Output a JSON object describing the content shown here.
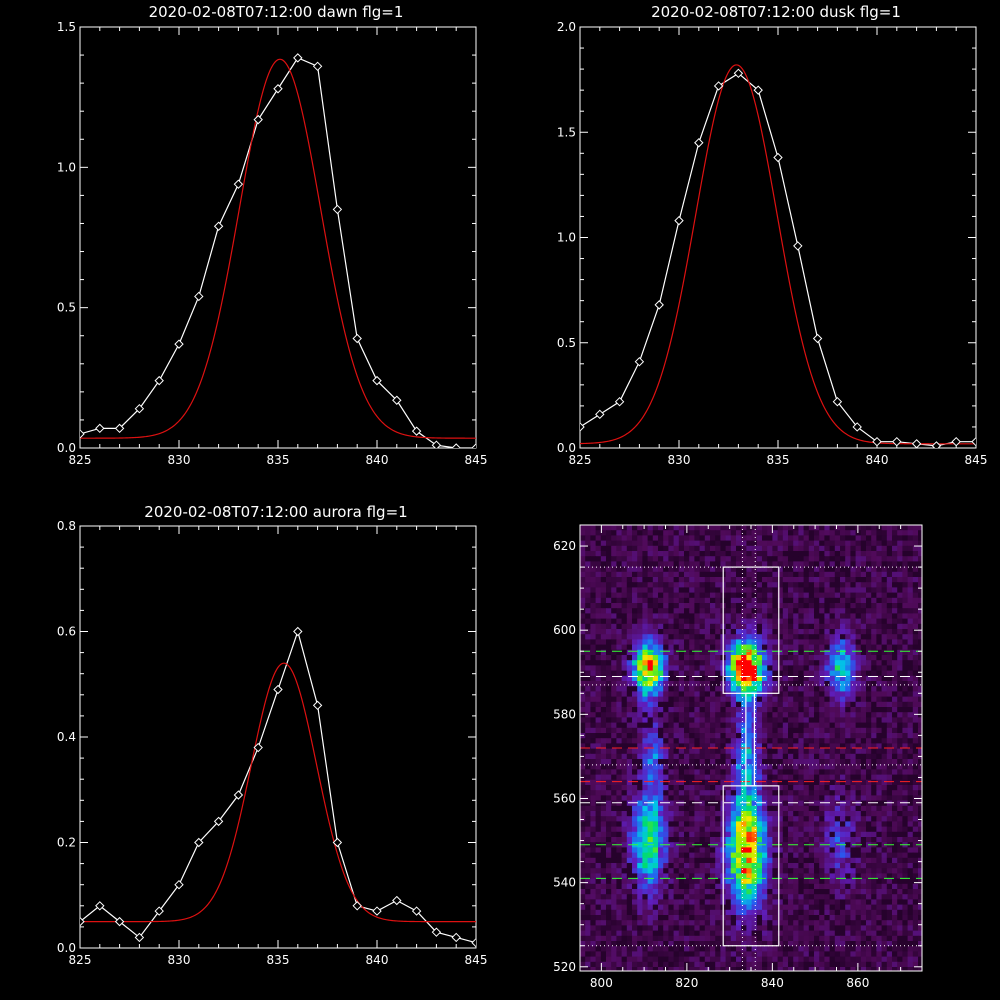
{
  "chart_data": [
    {
      "type": "line",
      "title": "2020-02-08T07:12:00 dawn flg=1",
      "xlim": [
        825,
        845
      ],
      "ylim": [
        0,
        1.5
      ],
      "xticks": [
        "825",
        "830",
        "835",
        "840",
        "845"
      ],
      "yticks": [
        "0.0",
        "0.5",
        "1.0",
        "1.5"
      ],
      "grid": false,
      "series": [
        {
          "style": "white-diamond",
          "x": [
            825,
            826,
            827,
            828,
            829,
            830,
            831,
            832,
            833,
            834,
            835,
            836,
            837,
            838,
            839,
            840,
            841,
            842,
            843,
            844,
            845
          ],
          "y": [
            0.05,
            0.07,
            0.07,
            0.14,
            0.24,
            0.37,
            0.54,
            0.79,
            0.94,
            1.17,
            1.28,
            1.39,
            1.36,
            0.85,
            0.39,
            0.24,
            0.17,
            0.06,
            0.01,
            0.0,
            0.0
          ]
        },
        {
          "style": "red-line",
          "gauss": {
            "amp": 1.35,
            "center": 835.1,
            "sigma": 2.05,
            "base": 0.035
          }
        }
      ],
      "colors": {
        "data": "#ffffff",
        "fit": "#dd1111"
      }
    },
    {
      "type": "line",
      "title": "2020-02-08T07:12:00 dusk flg=1",
      "xlim": [
        825,
        845
      ],
      "ylim": [
        0,
        2.0
      ],
      "xticks": [
        "825",
        "830",
        "835",
        "840",
        "845"
      ],
      "yticks": [
        "0.0",
        "0.5",
        "1.0",
        "1.5",
        "2.0"
      ],
      "grid": false,
      "series": [
        {
          "style": "white-diamond",
          "x": [
            825,
            826,
            827,
            828,
            829,
            830,
            831,
            832,
            833,
            834,
            835,
            836,
            837,
            838,
            839,
            840,
            841,
            842,
            843,
            844,
            845
          ],
          "y": [
            0.1,
            0.16,
            0.22,
            0.41,
            0.68,
            1.08,
            1.45,
            1.72,
            1.78,
            1.7,
            1.38,
            0.96,
            0.52,
            0.22,
            0.1,
            0.03,
            0.03,
            0.02,
            0.01,
            0.03,
            0.03
          ]
        },
        {
          "style": "red-line",
          "gauss": {
            "amp": 1.8,
            "center": 832.9,
            "sigma": 2.05,
            "base": 0.02
          }
        }
      ],
      "colors": {
        "data": "#ffffff",
        "fit": "#dd1111"
      }
    },
    {
      "type": "line",
      "title": "2020-02-08T07:12:00 aurora flg=1",
      "xlim": [
        825,
        845
      ],
      "ylim": [
        0,
        0.8
      ],
      "xticks": [
        "825",
        "830",
        "835",
        "840",
        "845"
      ],
      "yticks": [
        "0.0",
        "0.2",
        "0.4",
        "0.6",
        "0.8"
      ],
      "grid": false,
      "series": [
        {
          "style": "white-diamond",
          "x": [
            825,
            826,
            827,
            828,
            829,
            830,
            831,
            832,
            833,
            834,
            835,
            836,
            837,
            838,
            839,
            840,
            841,
            842,
            843,
            844,
            845
          ],
          "y": [
            0.05,
            0.08,
            0.05,
            0.02,
            0.07,
            0.12,
            0.2,
            0.24,
            0.29,
            0.38,
            0.49,
            0.6,
            0.46,
            0.2,
            0.08,
            0.07,
            0.09,
            0.07,
            0.03,
            0.02,
            0.01
          ]
        },
        {
          "style": "red-line",
          "gauss": {
            "amp": 0.49,
            "center": 835.3,
            "sigma": 1.65,
            "base": 0.05
          }
        }
      ],
      "colors": {
        "data": "#ffffff",
        "fit": "#dd1111"
      }
    },
    {
      "type": "heatmap",
      "title": "",
      "xlim": [
        795,
        875
      ],
      "ylim": [
        519,
        625
      ],
      "xticks": [
        "800",
        "820",
        "840",
        "860"
      ],
      "yticks": [
        "520",
        "540",
        "560",
        "580",
        "600",
        "620"
      ],
      "colormap": "rainbow",
      "background_color": "#3a0a3a",
      "blobs": [
        {
          "x": 811,
          "y": 591,
          "sx": 2.6,
          "sy": 4.5,
          "amp": 0.8
        },
        {
          "x": 811,
          "y": 550,
          "sx": 2.8,
          "sy": 8,
          "amp": 0.55
        },
        {
          "x": 812,
          "y": 570,
          "sx": 2.0,
          "sy": 7,
          "amp": 0.25
        },
        {
          "x": 834,
          "y": 591,
          "sx": 3.0,
          "sy": 4.5,
          "amp": 1.0
        },
        {
          "x": 834,
          "y": 547,
          "sx": 3.0,
          "sy": 9,
          "amp": 0.85
        },
        {
          "x": 834,
          "y": 570,
          "sx": 2.0,
          "sy": 9,
          "amp": 0.35
        },
        {
          "x": 856,
          "y": 591,
          "sx": 2.4,
          "sy": 5,
          "amp": 0.45
        },
        {
          "x": 856,
          "y": 550,
          "sx": 2.6,
          "sy": 7,
          "amp": 0.22
        }
      ],
      "boxes": [
        {
          "x0": 828.5,
          "x1": 841.5,
          "y0": 585,
          "y1": 615
        },
        {
          "x0": 828.5,
          "x1": 841.5,
          "y0": 525,
          "y1": 563
        }
      ],
      "center_strip": {
        "x0": 833.8,
        "x1": 835.8,
        "y0": 563,
        "y1": 585
      },
      "vertical_dotted": [
        833,
        836
      ],
      "horizontal_lines": [
        {
          "y": 615,
          "style": "dotted",
          "color": "#ffffff"
        },
        {
          "y": 595,
          "style": "dashed",
          "color": "#33ff33"
        },
        {
          "y": 589,
          "style": "dashed",
          "color": "#ffffff"
        },
        {
          "y": 587,
          "style": "dotted",
          "color": "#ffffff"
        },
        {
          "y": 572,
          "style": "dashed",
          "color": "#ff2222"
        },
        {
          "y": 568,
          "style": "dotted",
          "color": "#ffffff"
        },
        {
          "y": 564,
          "style": "dashed",
          "color": "#ff2222"
        },
        {
          "y": 559,
          "style": "dashed",
          "color": "#ffffff"
        },
        {
          "y": 549,
          "style": "dashed",
          "color": "#33ff33"
        },
        {
          "y": 541,
          "style": "dashed",
          "color": "#33ff33"
        },
        {
          "y": 525,
          "style": "dotted",
          "color": "#ffffff"
        }
      ]
    }
  ]
}
